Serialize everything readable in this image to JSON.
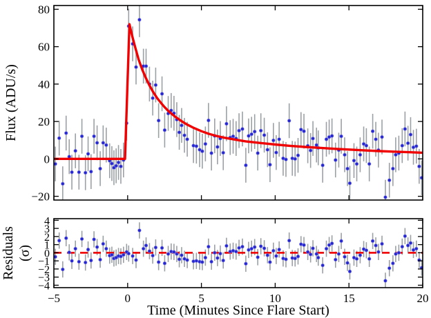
{
  "labels": {
    "xlabel": "Time (Minutes Since Flare Start)",
    "flux_ylabel": "Flux (ADU/s)",
    "residuals_ylabel_line1": "Residuals",
    "residuals_ylabel_line2": "(σ)"
  },
  "colors": {
    "marker": "#2626cf",
    "marker_edge": "#7d7de8",
    "errorbar": "#9aa0a4",
    "model_line": "#f00000",
    "zero_line": "#f00000",
    "frame": "#000000",
    "background": "#ffffff"
  },
  "chart_data": [
    {
      "type": "scatter",
      "panel": "flux",
      "title": "",
      "xlabel": "Time (Minutes Since Flare Start)",
      "ylabel": "Flux (ADU/s)",
      "xlim": [
        -5,
        20
      ],
      "ylim": [
        -22,
        82
      ],
      "x_ticks": [
        -5,
        0,
        5,
        10,
        15,
        20
      ],
      "y_ticks": [
        -20,
        0,
        20,
        40,
        60,
        80
      ],
      "grid": false,
      "legend": "none",
      "error_bar": 9.3,
      "points": [
        [
          -4.9,
          -2.7
        ],
        [
          -4.64,
          11.1
        ],
        [
          -4.4,
          -13.3
        ],
        [
          -4.17,
          13.8
        ],
        [
          -3.96,
          1.2
        ],
        [
          -3.78,
          -7.1
        ],
        [
          -3.54,
          4.3
        ],
        [
          -3.3,
          -7.1
        ],
        [
          -3.1,
          12.1
        ],
        [
          -2.86,
          -7.4
        ],
        [
          -2.68,
          2.7
        ],
        [
          -2.48,
          -6.8
        ],
        [
          -2.28,
          12.1
        ],
        [
          -2.07,
          8.6
        ],
        [
          -1.86,
          -5.2
        ],
        [
          -1.66,
          8.6
        ],
        [
          -1.45,
          7.4
        ],
        [
          -1.22,
          -1.0
        ],
        [
          -1.07,
          -2.5
        ],
        [
          -0.93,
          -4.7
        ],
        [
          -0.78,
          -3.7
        ],
        [
          -0.62,
          -1.9
        ],
        [
          -0.46,
          -4.0
        ],
        [
          -0.28,
          -0.6
        ],
        [
          -0.07,
          19.1
        ],
        [
          0.07,
          71.0
        ],
        [
          0.34,
          61.5
        ],
        [
          0.57,
          49.1
        ],
        [
          0.8,
          74.4
        ],
        [
          1.07,
          49.6
        ],
        [
          1.25,
          49.6
        ],
        [
          1.48,
          40.0
        ],
        [
          1.7,
          32.5
        ],
        [
          1.9,
          39.5
        ],
        [
          2.1,
          20.5
        ],
        [
          2.33,
          34.8
        ],
        [
          2.51,
          15.4
        ],
        [
          2.75,
          24.3
        ],
        [
          2.95,
          25.9
        ],
        [
          3.14,
          24.4
        ],
        [
          3.33,
          21.0
        ],
        [
          3.5,
          14.2
        ],
        [
          3.66,
          17.9
        ],
        [
          3.85,
          12.6
        ],
        [
          4.04,
          10.5
        ],
        [
          4.46,
          7.1
        ],
        [
          4.66,
          6.8
        ],
        [
          4.88,
          4.9
        ],
        [
          5.06,
          4.1
        ],
        [
          5.27,
          8.0
        ],
        [
          5.48,
          20.6
        ],
        [
          5.68,
          3.1
        ],
        [
          5.9,
          12.3
        ],
        [
          6.09,
          6.4
        ],
        [
          6.28,
          10.9
        ],
        [
          6.48,
          3.3
        ],
        [
          6.7,
          18.8
        ],
        [
          6.95,
          11.4
        ],
        [
          7.15,
          12.1
        ],
        [
          7.35,
          10.9
        ],
        [
          7.55,
          15.1
        ],
        [
          7.78,
          16.0
        ],
        [
          8.01,
          -3.4
        ],
        [
          8.2,
          12.3
        ],
        [
          8.4,
          13.2
        ],
        [
          8.61,
          14.6
        ],
        [
          8.82,
          3.1
        ],
        [
          9.03,
          15.1
        ],
        [
          9.26,
          12.7
        ],
        [
          9.48,
          4.9
        ],
        [
          9.65,
          -3.1
        ],
        [
          9.88,
          9.9
        ],
        [
          10.07,
          3.4
        ],
        [
          10.27,
          10.5
        ],
        [
          10.54,
          0.3
        ],
        [
          10.73,
          -0.3
        ],
        [
          10.95,
          20.4
        ],
        [
          11.16,
          0.3
        ],
        [
          11.35,
          0.0
        ],
        [
          11.55,
          1.9
        ],
        [
          11.75,
          15.7
        ],
        [
          11.95,
          14.8
        ],
        [
          12.21,
          7.0
        ],
        [
          12.4,
          4.5
        ],
        [
          12.56,
          10.9
        ],
        [
          12.8,
          7.4
        ],
        [
          12.92,
          5.9
        ],
        [
          13.22,
          -3.4
        ],
        [
          13.47,
          10.5
        ],
        [
          13.66,
          11.7
        ],
        [
          13.85,
          12.3
        ],
        [
          14.09,
          -0.6
        ],
        [
          14.31,
          4.7
        ],
        [
          14.48,
          12.1
        ],
        [
          14.71,
          2.2
        ],
        [
          14.9,
          -5.2
        ],
        [
          15.06,
          -13.0
        ],
        [
          15.34,
          -0.9
        ],
        [
          15.53,
          -2.7
        ],
        [
          15.76,
          2.2
        ],
        [
          16.0,
          8.0
        ],
        [
          16.18,
          7.1
        ],
        [
          16.38,
          -2.7
        ],
        [
          16.61,
          14.8
        ],
        [
          16.82,
          10.5
        ],
        [
          17.0,
          4.7
        ],
        [
          17.24,
          11.7
        ],
        [
          17.47,
          -20.5
        ],
        [
          17.74,
          -11.4
        ],
        [
          17.98,
          -5.2
        ],
        [
          18.17,
          2.2
        ],
        [
          18.38,
          3.1
        ],
        [
          18.61,
          7.1
        ],
        [
          18.8,
          16.0
        ],
        [
          19.0,
          8.4
        ],
        [
          19.18,
          13.0
        ],
        [
          19.37,
          6.2
        ],
        [
          19.57,
          6.8
        ],
        [
          19.76,
          -4.0
        ],
        [
          19.93,
          -10.1
        ]
      ],
      "model_series": {
        "name": "flare-model-fit",
        "x": [
          -5,
          -0.18,
          0.12,
          0.3,
          0.5,
          0.75,
          1,
          1.25,
          1.5,
          1.75,
          2,
          2.25,
          2.5,
          2.75,
          3,
          3.25,
          3.5,
          3.75,
          4,
          4.5,
          5,
          5.5,
          6,
          6.5,
          7,
          7.5,
          8,
          9,
          10,
          11,
          12,
          13,
          14,
          15,
          16,
          17,
          18,
          19,
          20
        ],
        "y": [
          0,
          0,
          72,
          66,
          60,
          53,
          47.5,
          43,
          39,
          35.5,
          32.5,
          30,
          27.7,
          25.7,
          24,
          22.4,
          21,
          19.7,
          18.5,
          16.5,
          14.8,
          13.4,
          12.3,
          11.4,
          10.7,
          10,
          9.4,
          8.5,
          7.7,
          7,
          6.4,
          5.9,
          5.4,
          5,
          4.6,
          4.2,
          3.9,
          3.6,
          3.3
        ]
      }
    },
    {
      "type": "scatter",
      "panel": "residuals",
      "title": "",
      "xlabel": "Time (Minutes Since Flare Start)",
      "ylabel": "Residuals (σ)",
      "xlim": [
        -5,
        20
      ],
      "ylim": [
        -4.3,
        4.2
      ],
      "x_ticks": [
        -5,
        0,
        5,
        10,
        15,
        20
      ],
      "x_tick_labels": [
        "−5",
        "0",
        "5",
        "10",
        "15",
        "20"
      ],
      "y_ticks": [
        -4,
        -3,
        -2,
        -1,
        0,
        1,
        2,
        3,
        4
      ],
      "grid": false,
      "legend": "none",
      "error_bar": 1.0,
      "zero_line": {
        "y": 0,
        "style": "dashed"
      },
      "points": [
        [
          -4.9,
          -0.5
        ],
        [
          -4.64,
          1.5
        ],
        [
          -4.4,
          -2.05
        ],
        [
          -4.17,
          1.8
        ],
        [
          -3.96,
          0.05
        ],
        [
          -3.78,
          -1.0
        ],
        [
          -3.54,
          0.5
        ],
        [
          -3.3,
          -1.1
        ],
        [
          -3.1,
          1.7
        ],
        [
          -2.86,
          -1.2
        ],
        [
          -2.68,
          0.4
        ],
        [
          -2.48,
          -0.95
        ],
        [
          -2.28,
          1.65
        ],
        [
          -2.07,
          0.7
        ],
        [
          -1.86,
          -0.85
        ],
        [
          -1.66,
          1.1
        ],
        [
          -1.45,
          0.5
        ],
        [
          -1.22,
          -0.35
        ],
        [
          -1.07,
          -0.25
        ],
        [
          -0.93,
          -0.7
        ],
        [
          -0.78,
          -0.6
        ],
        [
          -0.62,
          -0.4
        ],
        [
          -0.46,
          -0.45
        ],
        [
          -0.28,
          -0.25
        ],
        [
          -0.07,
          0.1
        ],
        [
          0.07,
          -0.1
        ],
        [
          0.34,
          -0.4
        ],
        [
          0.57,
          -0.9
        ],
        [
          0.8,
          2.75
        ],
        [
          1.07,
          0.5
        ],
        [
          1.25,
          0.9
        ],
        [
          1.48,
          0.2
        ],
        [
          1.7,
          -0.35
        ],
        [
          1.9,
          0.65
        ],
        [
          2.1,
          -1.15
        ],
        [
          2.33,
          0.6
        ],
        [
          2.51,
          -1.3
        ],
        [
          2.75,
          -0.15
        ],
        [
          2.95,
          0.15
        ],
        [
          3.14,
          0.1
        ],
        [
          3.33,
          -0.15
        ],
        [
          3.5,
          -0.8
        ],
        [
          3.66,
          -0.3
        ],
        [
          3.85,
          -0.75
        ],
        [
          4.04,
          -0.9
        ],
        [
          4.46,
          -1.05
        ],
        [
          4.66,
          -1.0
        ],
        [
          4.88,
          -1.1
        ],
        [
          5.06,
          -1.15
        ],
        [
          5.27,
          -0.6
        ],
        [
          5.48,
          0.75
        ],
        [
          5.68,
          -1.1
        ],
        [
          5.9,
          0.0
        ],
        [
          6.09,
          -0.65
        ],
        [
          6.28,
          -0.1
        ],
        [
          6.48,
          -0.95
        ],
        [
          6.7,
          0.85
        ],
        [
          6.95,
          0.15
        ],
        [
          7.15,
          0.25
        ],
        [
          7.35,
          0.15
        ],
        [
          7.55,
          0.6
        ],
        [
          7.78,
          0.75
        ],
        [
          8.01,
          -1.35
        ],
        [
          8.2,
          0.35
        ],
        [
          8.4,
          0.5
        ],
        [
          8.61,
          0.7
        ],
        [
          8.82,
          -0.55
        ],
        [
          9.03,
          0.8
        ],
        [
          9.26,
          0.55
        ],
        [
          9.48,
          -0.3
        ],
        [
          9.65,
          -1.15
        ],
        [
          9.88,
          0.25
        ],
        [
          10.07,
          -0.4
        ],
        [
          10.27,
          0.4
        ],
        [
          10.54,
          -0.7
        ],
        [
          10.73,
          -0.8
        ],
        [
          10.95,
          1.5
        ],
        [
          11.16,
          -0.65
        ],
        [
          11.35,
          -0.7
        ],
        [
          11.55,
          -0.45
        ],
        [
          11.75,
          1.05
        ],
        [
          11.95,
          0.95
        ],
        [
          12.21,
          0.1
        ],
        [
          12.4,
          -0.2
        ],
        [
          12.56,
          0.55
        ],
        [
          12.8,
          -0.15
        ],
        [
          12.92,
          -0.6
        ],
        [
          13.22,
          -1.55
        ],
        [
          13.47,
          0.5
        ],
        [
          13.66,
          0.95
        ],
        [
          13.85,
          1.15
        ],
        [
          14.09,
          -0.85
        ],
        [
          14.31,
          -0.15
        ],
        [
          14.48,
          1.45
        ],
        [
          14.71,
          -0.5
        ],
        [
          14.9,
          -1.25
        ],
        [
          15.06,
          -2.3
        ],
        [
          15.34,
          -0.6
        ],
        [
          15.53,
          -0.75
        ],
        [
          15.76,
          -0.3
        ],
        [
          16.0,
          0.45
        ],
        [
          16.18,
          0.3
        ],
        [
          16.38,
          -0.75
        ],
        [
          16.61,
          1.45
        ],
        [
          16.82,
          0.9
        ],
        [
          17.0,
          0.1
        ],
        [
          17.24,
          1.1
        ],
        [
          17.47,
          -3.45
        ],
        [
          17.74,
          -1.9
        ],
        [
          17.98,
          -1.3
        ],
        [
          18.17,
          -0.15
        ],
        [
          18.38,
          0.0
        ],
        [
          18.61,
          0.75
        ],
        [
          18.8,
          2.05
        ],
        [
          19.0,
          0.9
        ],
        [
          19.18,
          1.2
        ],
        [
          19.37,
          0.35
        ],
        [
          19.57,
          0.5
        ],
        [
          19.76,
          -0.9
        ],
        [
          19.93,
          -1.85
        ]
      ]
    }
  ]
}
